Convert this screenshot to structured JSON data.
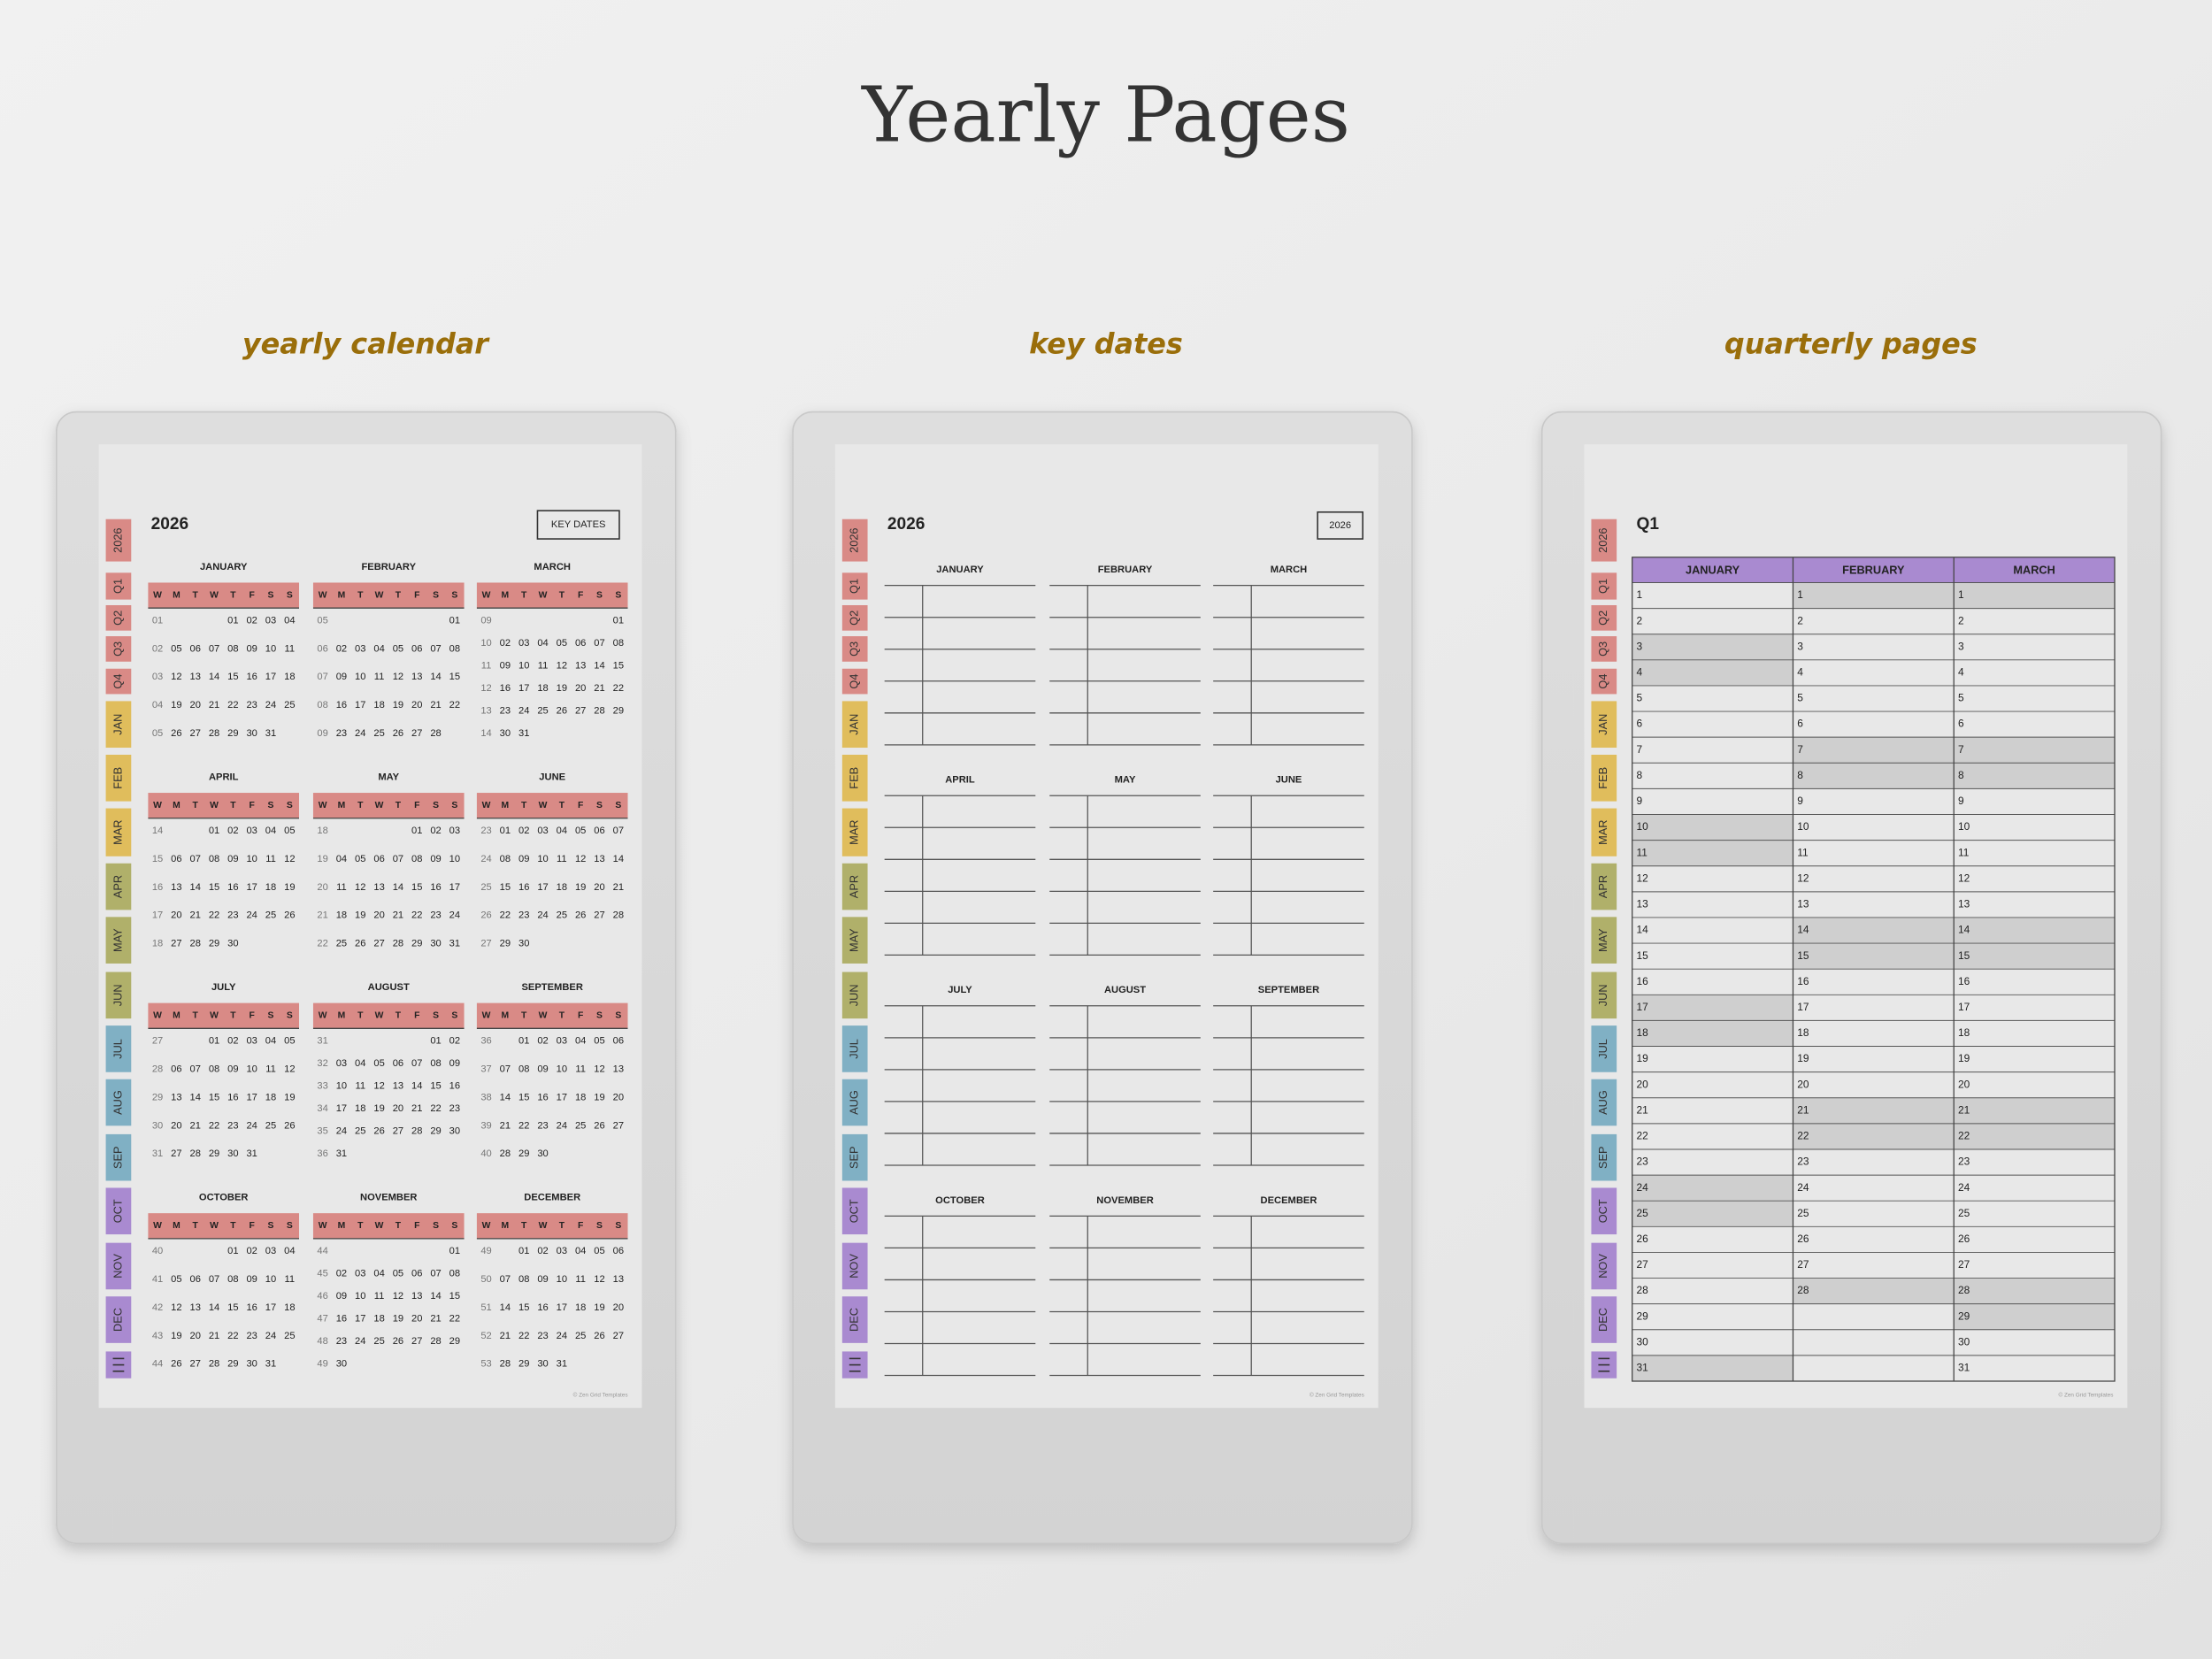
{
  "header": {
    "title": "Yearly Pages"
  },
  "panels": [
    {
      "caption": "yearly calendar"
    },
    {
      "caption": "key dates"
    },
    {
      "caption": "quarterly pages"
    }
  ],
  "sidebar": {
    "tabs": [
      "2026",
      "Q1",
      "Q2",
      "Q3",
      "Q4",
      "JAN",
      "FEB",
      "MAR",
      "APR",
      "MAY",
      "JUN",
      "JUL",
      "AUG",
      "SEP",
      "OCT",
      "NOV",
      "DEC"
    ]
  },
  "footer": "© Zen Grid Templates",
  "yearly_calendar": {
    "year": "2026",
    "button": "KEY DATES",
    "weekday_header": [
      "W",
      "M",
      "T",
      "W",
      "T",
      "F",
      "S",
      "S"
    ],
    "months": [
      {
        "name": "JANUARY",
        "rows": [
          [
            "01",
            null,
            null,
            null,
            "01",
            "02",
            "03",
            "04"
          ],
          [
            "02",
            "05",
            "06",
            "07",
            "08",
            "09",
            "10",
            "11"
          ],
          [
            "03",
            "12",
            "13",
            "14",
            "15",
            "16",
            "17",
            "18"
          ],
          [
            "04",
            "19",
            "20",
            "21",
            "22",
            "23",
            "24",
            "25"
          ],
          [
            "05",
            "26",
            "27",
            "28",
            "29",
            "30",
            "31",
            null
          ]
        ]
      },
      {
        "name": "FEBRUARY",
        "rows": [
          [
            "05",
            null,
            null,
            null,
            null,
            null,
            null,
            "01"
          ],
          [
            "06",
            "02",
            "03",
            "04",
            "05",
            "06",
            "07",
            "08"
          ],
          [
            "07",
            "09",
            "10",
            "11",
            "12",
            "13",
            "14",
            "15"
          ],
          [
            "08",
            "16",
            "17",
            "18",
            "19",
            "20",
            "21",
            "22"
          ],
          [
            "09",
            "23",
            "24",
            "25",
            "26",
            "27",
            "28",
            null
          ]
        ]
      },
      {
        "name": "MARCH",
        "rows": [
          [
            "09",
            null,
            null,
            null,
            null,
            null,
            null,
            "01"
          ],
          [
            "10",
            "02",
            "03",
            "04",
            "05",
            "06",
            "07",
            "08"
          ],
          [
            "11",
            "09",
            "10",
            "11",
            "12",
            "13",
            "14",
            "15"
          ],
          [
            "12",
            "16",
            "17",
            "18",
            "19",
            "20",
            "21",
            "22"
          ],
          [
            "13",
            "23",
            "24",
            "25",
            "26",
            "27",
            "28",
            "29"
          ],
          [
            "14",
            "30",
            "31",
            null,
            null,
            null,
            null,
            null
          ]
        ]
      },
      {
        "name": "APRIL",
        "rows": [
          [
            "14",
            null,
            null,
            "01",
            "02",
            "03",
            "04",
            "05"
          ],
          [
            "15",
            "06",
            "07",
            "08",
            "09",
            "10",
            "11",
            "12"
          ],
          [
            "16",
            "13",
            "14",
            "15",
            "16",
            "17",
            "18",
            "19"
          ],
          [
            "17",
            "20",
            "21",
            "22",
            "23",
            "24",
            "25",
            "26"
          ],
          [
            "18",
            "27",
            "28",
            "29",
            "30",
            null,
            null,
            null
          ]
        ]
      },
      {
        "name": "MAY",
        "rows": [
          [
            "18",
            null,
            null,
            null,
            null,
            "01",
            "02",
            "03"
          ],
          [
            "19",
            "04",
            "05",
            "06",
            "07",
            "08",
            "09",
            "10"
          ],
          [
            "20",
            "11",
            "12",
            "13",
            "14",
            "15",
            "16",
            "17"
          ],
          [
            "21",
            "18",
            "19",
            "20",
            "21",
            "22",
            "23",
            "24"
          ],
          [
            "22",
            "25",
            "26",
            "27",
            "28",
            "29",
            "30",
            "31"
          ]
        ]
      },
      {
        "name": "JUNE",
        "rows": [
          [
            "23",
            "01",
            "02",
            "03",
            "04",
            "05",
            "06",
            "07"
          ],
          [
            "24",
            "08",
            "09",
            "10",
            "11",
            "12",
            "13",
            "14"
          ],
          [
            "25",
            "15",
            "16",
            "17",
            "18",
            "19",
            "20",
            "21"
          ],
          [
            "26",
            "22",
            "23",
            "24",
            "25",
            "26",
            "27",
            "28"
          ],
          [
            "27",
            "29",
            "30",
            null,
            null,
            null,
            null,
            null
          ]
        ]
      },
      {
        "name": "JULY",
        "rows": [
          [
            "27",
            null,
            null,
            "01",
            "02",
            "03",
            "04",
            "05"
          ],
          [
            "28",
            "06",
            "07",
            "08",
            "09",
            "10",
            "11",
            "12"
          ],
          [
            "29",
            "13",
            "14",
            "15",
            "16",
            "17",
            "18",
            "19"
          ],
          [
            "30",
            "20",
            "21",
            "22",
            "23",
            "24",
            "25",
            "26"
          ],
          [
            "31",
            "27",
            "28",
            "29",
            "30",
            "31",
            null,
            null
          ]
        ]
      },
      {
        "name": "AUGUST",
        "rows": [
          [
            "31",
            null,
            null,
            null,
            null,
            null,
            "01",
            "02"
          ],
          [
            "32",
            "03",
            "04",
            "05",
            "06",
            "07",
            "08",
            "09"
          ],
          [
            "33",
            "10",
            "11",
            "12",
            "13",
            "14",
            "15",
            "16"
          ],
          [
            "34",
            "17",
            "18",
            "19",
            "20",
            "21",
            "22",
            "23"
          ],
          [
            "35",
            "24",
            "25",
            "26",
            "27",
            "28",
            "29",
            "30"
          ],
          [
            "36",
            "31",
            null,
            null,
            null,
            null,
            null,
            null
          ]
        ]
      },
      {
        "name": "SEPTEMBER",
        "rows": [
          [
            "36",
            null,
            "01",
            "02",
            "03",
            "04",
            "05",
            "06"
          ],
          [
            "37",
            "07",
            "08",
            "09",
            "10",
            "11",
            "12",
            "13"
          ],
          [
            "38",
            "14",
            "15",
            "16",
            "17",
            "18",
            "19",
            "20"
          ],
          [
            "39",
            "21",
            "22",
            "23",
            "24",
            "25",
            "26",
            "27"
          ],
          [
            "40",
            "28",
            "29",
            "30",
            null,
            null,
            null,
            null
          ]
        ]
      },
      {
        "name": "OCTOBER",
        "rows": [
          [
            "40",
            null,
            null,
            null,
            "01",
            "02",
            "03",
            "04"
          ],
          [
            "41",
            "05",
            "06",
            "07",
            "08",
            "09",
            "10",
            "11"
          ],
          [
            "42",
            "12",
            "13",
            "14",
            "15",
            "16",
            "17",
            "18"
          ],
          [
            "43",
            "19",
            "20",
            "21",
            "22",
            "23",
            "24",
            "25"
          ],
          [
            "44",
            "26",
            "27",
            "28",
            "29",
            "30",
            "31",
            null
          ]
        ]
      },
      {
        "name": "NOVEMBER",
        "rows": [
          [
            "44",
            null,
            null,
            null,
            null,
            null,
            null,
            "01"
          ],
          [
            "45",
            "02",
            "03",
            "04",
            "05",
            "06",
            "07",
            "08"
          ],
          [
            "46",
            "09",
            "10",
            "11",
            "12",
            "13",
            "14",
            "15"
          ],
          [
            "47",
            "16",
            "17",
            "18",
            "19",
            "20",
            "21",
            "22"
          ],
          [
            "48",
            "23",
            "24",
            "25",
            "26",
            "27",
            "28",
            "29"
          ],
          [
            "49",
            "30",
            null,
            null,
            null,
            null,
            null,
            null
          ]
        ]
      },
      {
        "name": "DECEMBER",
        "rows": [
          [
            "49",
            null,
            "01",
            "02",
            "03",
            "04",
            "05",
            "06"
          ],
          [
            "50",
            "07",
            "08",
            "09",
            "10",
            "11",
            "12",
            "13"
          ],
          [
            "51",
            "14",
            "15",
            "16",
            "17",
            "18",
            "19",
            "20"
          ],
          [
            "52",
            "21",
            "22",
            "23",
            "24",
            "25",
            "26",
            "27"
          ],
          [
            "53",
            "28",
            "29",
            "30",
            "31",
            null,
            null,
            null
          ]
        ]
      }
    ]
  },
  "key_dates": {
    "year": "2026",
    "button": "2026",
    "months": [
      "JANUARY",
      "FEBRUARY",
      "MARCH",
      "APRIL",
      "MAY",
      "JUNE",
      "JULY",
      "AUGUST",
      "SEPTEMBER",
      "OCTOBER",
      "NOVEMBER",
      "DECEMBER"
    ]
  },
  "quarterly": {
    "title": "Q1",
    "columns": [
      {
        "name": "JANUARY",
        "days": [
          1,
          2,
          3,
          4,
          5,
          6,
          7,
          8,
          9,
          10,
          11,
          12,
          13,
          14,
          15,
          16,
          17,
          18,
          19,
          20,
          21,
          22,
          23,
          24,
          25,
          26,
          27,
          28,
          29,
          30,
          31
        ],
        "shaded": [
          3,
          4,
          10,
          11,
          17,
          18,
          24,
          25,
          31
        ]
      },
      {
        "name": "FEBRUARY",
        "days": [
          1,
          2,
          3,
          4,
          5,
          6,
          7,
          8,
          9,
          10,
          11,
          12,
          13,
          14,
          15,
          16,
          17,
          18,
          19,
          20,
          21,
          22,
          23,
          24,
          25,
          26,
          27,
          28
        ],
        "shaded": [
          1,
          7,
          8,
          14,
          15,
          21,
          22,
          28
        ]
      },
      {
        "name": "MARCH",
        "days": [
          1,
          2,
          3,
          4,
          5,
          6,
          7,
          8,
          9,
          10,
          11,
          12,
          13,
          14,
          15,
          16,
          17,
          18,
          19,
          20,
          21,
          22,
          23,
          24,
          25,
          26,
          27,
          28,
          29,
          30,
          31
        ],
        "shaded": [
          1,
          7,
          8,
          14,
          15,
          21,
          22,
          28,
          29
        ]
      }
    ]
  }
}
